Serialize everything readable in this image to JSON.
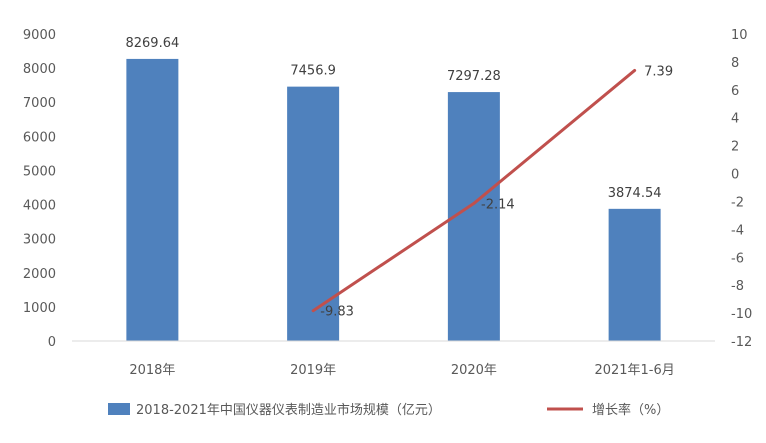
{
  "chart_data": {
    "type": "bar+line",
    "categories": [
      "2018年",
      "2019年",
      "2020年",
      "2021年1-6月"
    ],
    "series": [
      {
        "name": "2018-2021年中国仪器仪表制造业市场规模（亿元）",
        "type": "bar",
        "axis": "left",
        "values": [
          8269.64,
          7456.9,
          7297.28,
          3874.54
        ],
        "labels": [
          "8269.64",
          "7456.9",
          "7297.28",
          "3874.54"
        ],
        "color": "#4F81BD"
      },
      {
        "name": "增长率（%）",
        "type": "line",
        "axis": "right",
        "values": [
          null,
          -9.83,
          -2.14,
          7.39
        ],
        "labels": [
          "",
          "-9.83",
          "-2.14",
          "7.39"
        ],
        "color": "#C0504D"
      }
    ],
    "y_left": {
      "min": 0,
      "max": 9000,
      "step": 1000,
      "ticks": [
        "0",
        "1000",
        "2000",
        "3000",
        "4000",
        "5000",
        "6000",
        "7000",
        "8000",
        "9000"
      ]
    },
    "y_right": {
      "min": -12,
      "max": 10,
      "step": 2,
      "ticks": [
        "-12",
        "-10",
        "-8",
        "-6",
        "-4",
        "-2",
        "0",
        "2",
        "4",
        "6",
        "8",
        "10"
      ]
    },
    "grid": false,
    "legend": "bottom"
  }
}
